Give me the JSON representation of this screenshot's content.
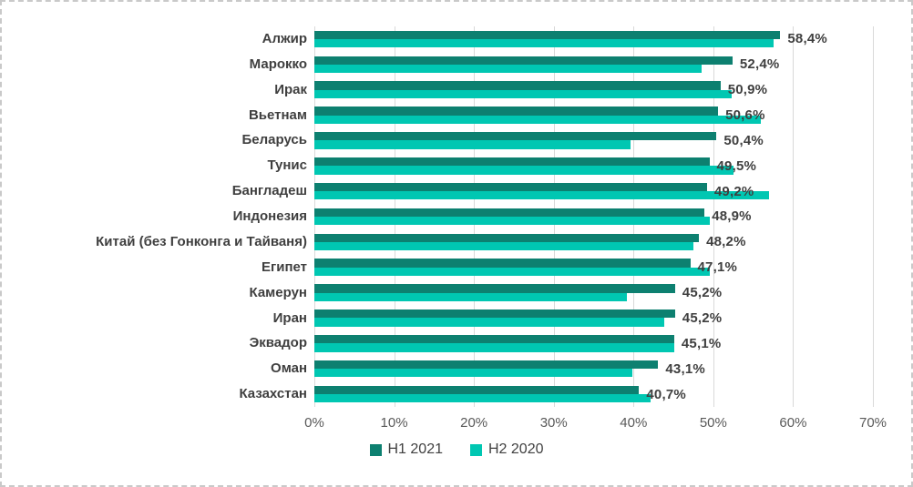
{
  "chart_data": {
    "type": "bar",
    "orientation": "horizontal",
    "title": "",
    "xlabel": "",
    "ylabel": "",
    "xlim": [
      0,
      70
    ],
    "x_ticks": [
      "0%",
      "10%",
      "20%",
      "30%",
      "40%",
      "50%",
      "60%",
      "70%"
    ],
    "grid": "vertical",
    "legend_position": "bottom-center",
    "categories": [
      "Алжир",
      "Марокко",
      "Ирак",
      "Вьетнам",
      "Беларусь",
      "Тунис",
      "Бангладеш",
      "Индонезия",
      "Китай (без Гонконга и Тайваня)",
      "Египет",
      "Камерун",
      "Иран",
      "Эквадор",
      "Оман",
      "Казахстан"
    ],
    "series": [
      {
        "name": "H1 2021",
        "color": "#0d8070",
        "values": [
          58.4,
          52.4,
          50.9,
          50.6,
          50.4,
          49.5,
          49.2,
          48.9,
          48.2,
          47.1,
          45.2,
          45.2,
          45.1,
          43.1,
          40.7
        ],
        "data_labels": [
          "58,4%",
          "52,4%",
          "50,9%",
          "50,6%",
          "50,4%",
          "49,5%",
          "49,2%",
          "48,9%",
          "48,2%",
          "47,1%",
          "45,2%",
          "45,2%",
          "45,1%",
          "43,1%",
          "40,7%"
        ]
      },
      {
        "name": "H2 2020",
        "color": "#00c7b2",
        "values": [
          57.5,
          48.5,
          52.3,
          56.0,
          39.6,
          52.5,
          57.0,
          49.5,
          47.5,
          49.6,
          39.2,
          43.8,
          45.1,
          39.8,
          42.1
        ],
        "data_labels": null
      }
    ]
  },
  "legend": {
    "items": [
      {
        "label": "H1 2021",
        "color": "#0d8070"
      },
      {
        "label": "H2 2020",
        "color": "#00c7b2"
      }
    ]
  },
  "colors": {
    "background": "#ffffff",
    "selection_border": "#c9c9c9",
    "gridline": "#d9d9d9",
    "category_text": "#3f3f3f",
    "data_label_text": "#3f3f3f",
    "tick_text": "#595959"
  }
}
